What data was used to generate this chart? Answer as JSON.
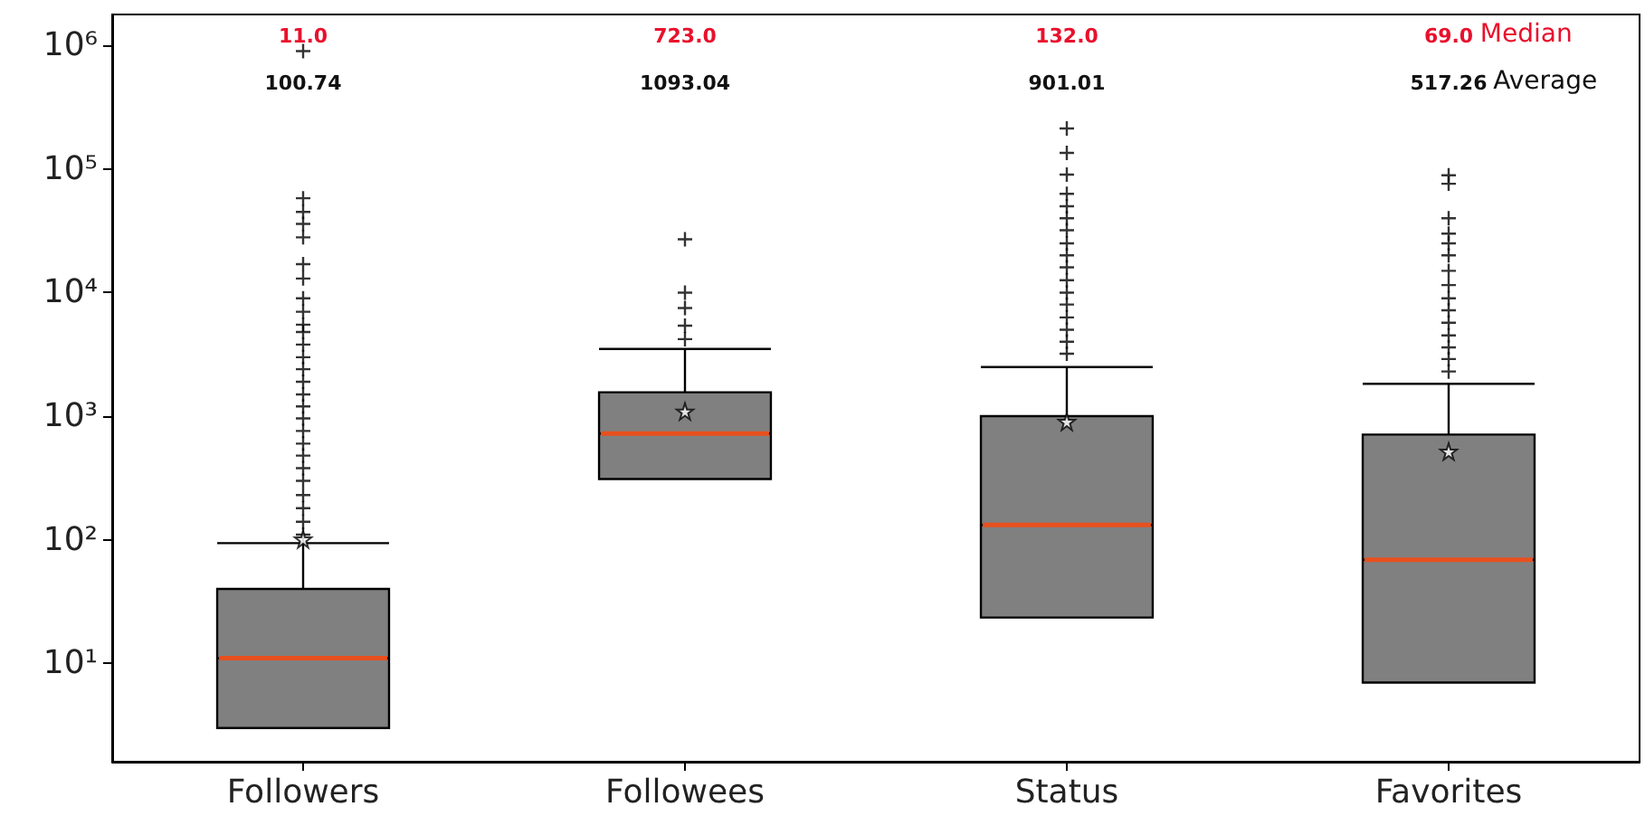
{
  "chart_data": {
    "type": "box",
    "categories": [
      "Followers",
      "Followees",
      "Status",
      "Favorites"
    ],
    "series": [
      {
        "color": "#808080",
        "boxes": [
          {
            "low": 3,
            "q1": 3,
            "median": 11,
            "q3": 40,
            "high": 94,
            "mean": 100.74,
            "outliers": [
              110,
              140,
              180,
              230,
              300,
              380,
              480,
              600,
              760,
              960,
              1200,
              1500,
              1900,
              2400,
              3000,
              3800,
              4800,
              5500,
              7000,
              9000,
              13000,
              17000,
              28000,
              36000,
              45000,
              58000,
              900000
            ]
          },
          {
            "low": 310,
            "q1": 310,
            "median": 723,
            "q3": 1560,
            "high": 3500,
            "mean": 1093.04,
            "outliers": [
              4200,
              5400,
              7500,
              10000,
              27000
            ]
          },
          {
            "low": 23.5,
            "q1": 23.5,
            "median": 132,
            "q3": 1000,
            "high": 2500,
            "mean": 901.01,
            "outliers": [
              3200,
              4000,
              5000,
              6300,
              8000,
              10000,
              12600,
              16000,
              20000,
              25000,
              32000,
              40000,
              50000,
              63000,
              90000,
              135000,
              213000
            ]
          },
          {
            "low": 7,
            "q1": 7,
            "median": 69,
            "q3": 710,
            "high": 1830,
            "mean": 517.26,
            "outliers": [
              2300,
              2900,
              3600,
              4500,
              5700,
              7200,
              9000,
              11500,
              15000,
              20000,
              25000,
              30000,
              40000,
              76000,
              89000
            ]
          }
        ]
      }
    ],
    "log": true,
    "ylim": [
      1.6,
      1780000
    ],
    "yticks": [
      {
        "value": 10,
        "label": "10¹"
      },
      {
        "value": 100,
        "label": "10²"
      },
      {
        "value": 1000,
        "label": "10³"
      },
      {
        "value": 10000,
        "label": "10⁴"
      },
      {
        "value": 100000,
        "label": "10⁵"
      },
      {
        "value": 1000000,
        "label": "10⁶"
      }
    ],
    "annotations": [
      "11.0",
      "723.0",
      "132.0",
      "69.0",
      "100.74",
      "1093.04",
      "901.01",
      "517.26",
      "Median",
      "Average"
    ]
  }
}
